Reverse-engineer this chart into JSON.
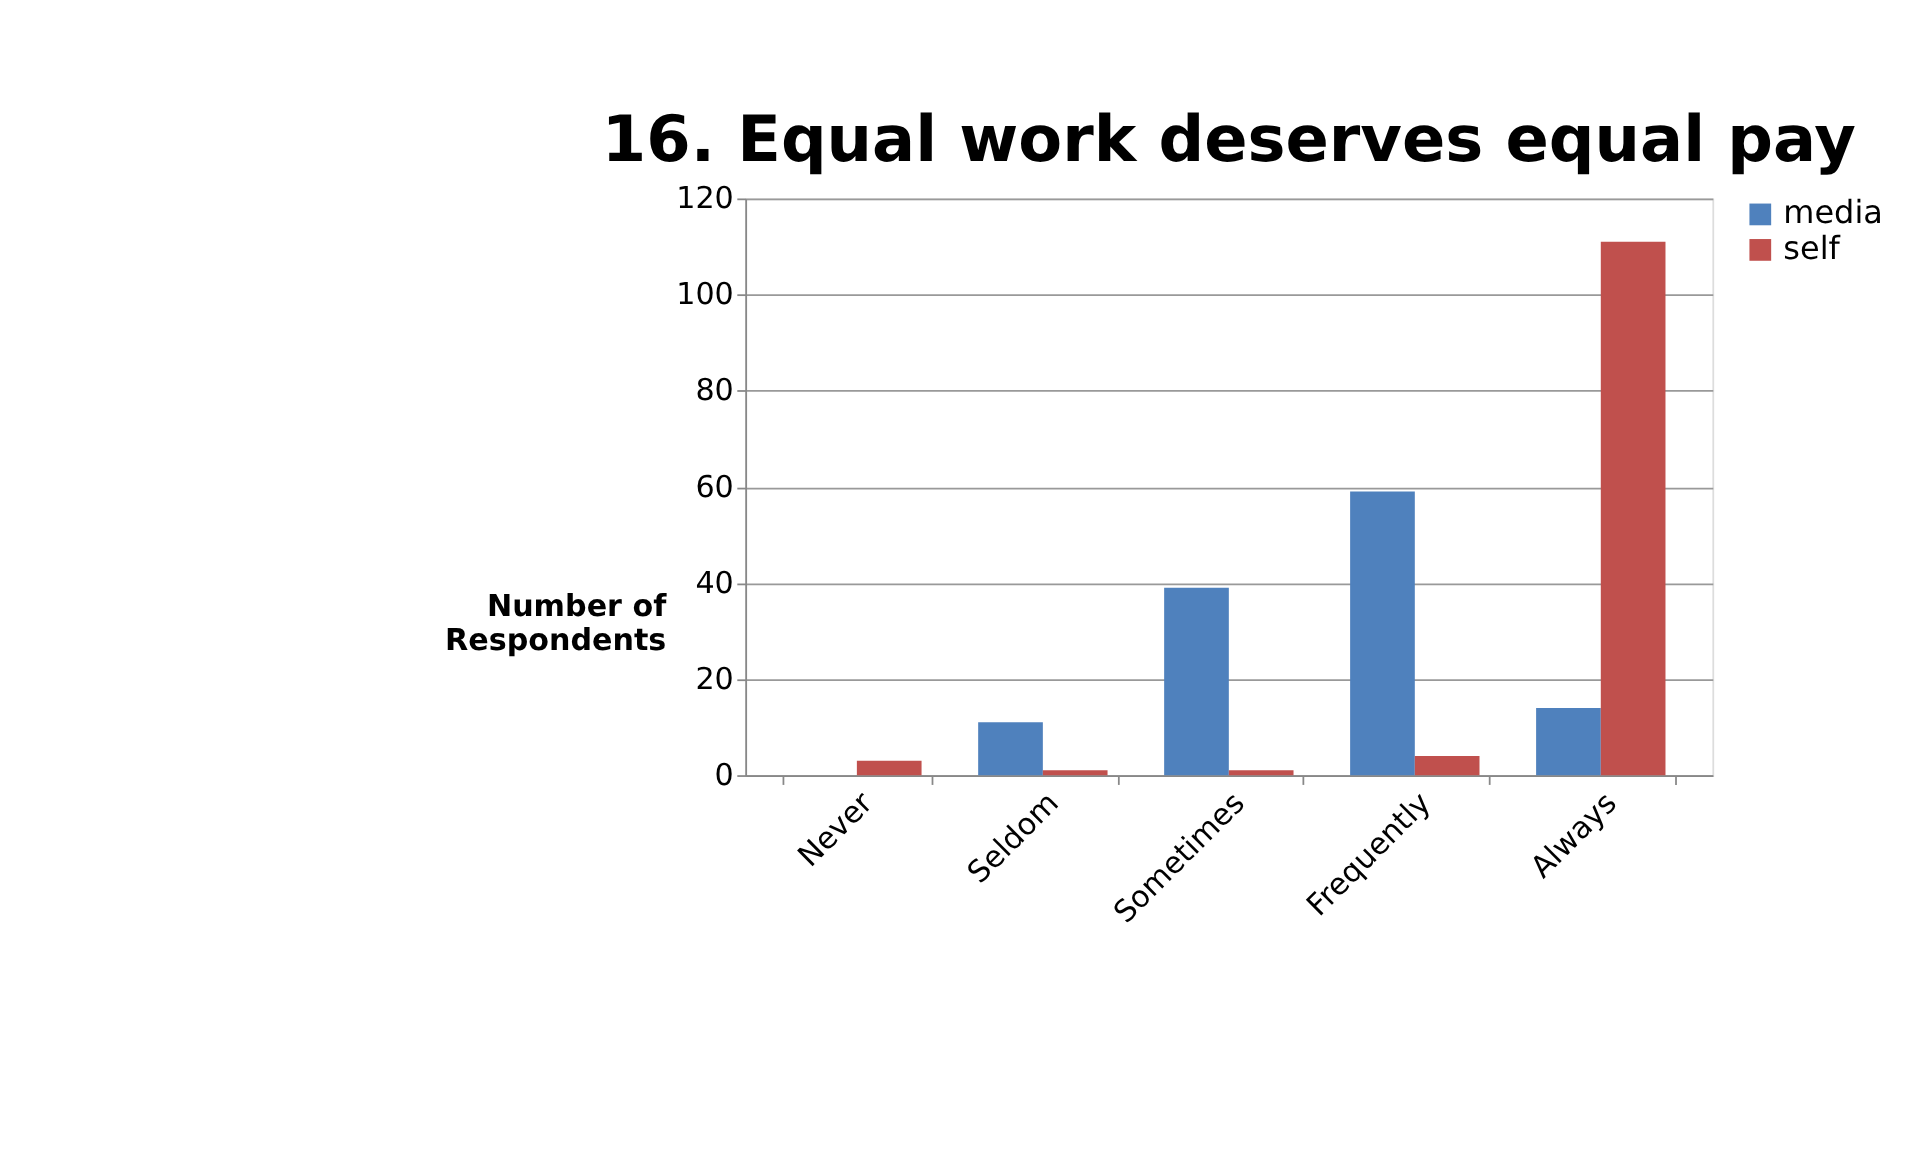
{
  "chart_data": {
    "type": "bar",
    "title": "16. Equal work deserves equal pay",
    "ylabel": "Number of Respondents",
    "categories": [
      "Never",
      "Seldom",
      "Sometimes",
      "Frequently",
      "Always"
    ],
    "series": [
      {
        "name": "media",
        "color": "#4f81bd",
        "values": [
          0,
          11,
          39,
          59,
          14
        ]
      },
      {
        "name": "self",
        "color": "#c0504d",
        "values": [
          3,
          1,
          1,
          4,
          111
        ]
      }
    ],
    "ylim": [
      0,
      120
    ],
    "yticks": [
      0,
      20,
      40,
      60,
      80,
      100,
      120
    ],
    "grid": "y",
    "legend": "right"
  }
}
